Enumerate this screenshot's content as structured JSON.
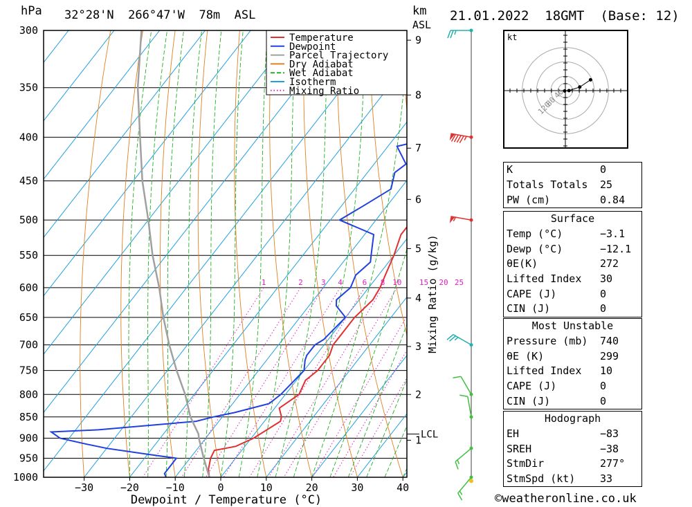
{
  "header": {
    "hpa_label": "hPa",
    "location": "32°28'N  266°47'W  78m  ASL",
    "km_label": "km",
    "asl_label": "ASL",
    "datetime": "21.01.2022  18GMT  (Base: 12)"
  },
  "chart_data": {
    "type": "skew-t",
    "xlabel": "Dewpoint / Temperature (°C)",
    "ylabel": "hPa",
    "mixing_ratio_label": "Mixing Ratio (g/kg)",
    "x_ticks": [
      -30,
      -20,
      -10,
      0,
      10,
      20,
      30,
      40
    ],
    "pressure_levels": [
      300,
      350,
      400,
      450,
      500,
      550,
      600,
      650,
      700,
      750,
      800,
      850,
      900,
      950,
      1000
    ],
    "height_ticks_km": [
      {
        "km": 1,
        "p": 905
      },
      {
        "km": 2,
        "p": 800
      },
      {
        "km": 3,
        "p": 703
      },
      {
        "km": 4,
        "p": 617
      },
      {
        "km": 5,
        "p": 540
      },
      {
        "km": 6,
        "p": 473
      },
      {
        "km": 7,
        "p": 412
      },
      {
        "km": 8,
        "p": 357
      },
      {
        "km": 9,
        "p": 308
      }
    ],
    "lcl": {
      "label": "LCL",
      "p": 890
    },
    "mixing_ratio_labels": [
      "1",
      "2",
      "3",
      "4",
      "6",
      "8",
      "10",
      "15",
      "20",
      "25"
    ],
    "mixing_ratio_values": [
      1,
      2,
      3,
      4,
      6,
      8,
      10,
      15,
      20,
      25
    ],
    "legend": [
      "Temperature",
      "Dewpoint",
      "Parcel Trajectory",
      "Dry Adiabat",
      "Wet Adiabat",
      "Isotherm",
      "Mixing Ratio"
    ],
    "colors": {
      "temperature": "#e03030",
      "dewpoint": "#2040e0",
      "parcel": "#a0a0a0",
      "dry_adiabat": "#e08020",
      "wet_adiabat": "#20b020",
      "isotherm": "#20a0e0",
      "mixing_ratio": "#e020c0",
      "wind_axis": "#404040"
    },
    "series": [
      {
        "name": "Temperature",
        "points": [
          [
            1000,
            -2.5
          ],
          [
            980,
            -4
          ],
          [
            950,
            -5.5
          ],
          [
            930,
            -6
          ],
          [
            920,
            -2
          ],
          [
            900,
            0.5
          ],
          [
            880,
            2
          ],
          [
            860,
            3.5
          ],
          [
            850,
            3
          ],
          [
            830,
            1
          ],
          [
            800,
            3
          ],
          [
            770,
            2
          ],
          [
            750,
            3
          ],
          [
            720,
            3
          ],
          [
            700,
            2
          ],
          [
            650,
            2
          ],
          [
            620,
            3
          ],
          [
            600,
            2.5
          ],
          [
            580,
            1.5
          ],
          [
            550,
            0
          ],
          [
            520,
            -2
          ],
          [
            500,
            -2
          ],
          [
            470,
            -4
          ],
          [
            450,
            -6
          ],
          [
            430,
            -8
          ],
          [
            400,
            -10
          ],
          [
            380,
            -11
          ],
          [
            350,
            -14
          ],
          [
            320,
            -18
          ],
          [
            300,
            -21
          ]
        ]
      },
      {
        "name": "Dewpoint",
        "points": [
          [
            1000,
            -12
          ],
          [
            990,
            -13
          ],
          [
            950,
            -13
          ],
          [
            940,
            -20
          ],
          [
            925,
            -30
          ],
          [
            915,
            -35
          ],
          [
            900,
            -42
          ],
          [
            885,
            -45
          ],
          [
            880,
            -35
          ],
          [
            870,
            -25
          ],
          [
            860,
            -15
          ],
          [
            850,
            -12
          ],
          [
            840,
            -8
          ],
          [
            820,
            -2
          ],
          [
            800,
            -1
          ],
          [
            750,
            0
          ],
          [
            730,
            -1.5
          ],
          [
            720,
            -2
          ],
          [
            700,
            -2
          ],
          [
            690,
            -1
          ],
          [
            670,
            -0.5
          ],
          [
            650,
            0
          ],
          [
            630,
            -4
          ],
          [
            620,
            -5
          ],
          [
            600,
            -4
          ],
          [
            580,
            -5
          ],
          [
            560,
            -4
          ],
          [
            550,
            -5
          ],
          [
            520,
            -8
          ],
          [
            500,
            -18
          ],
          [
            480,
            -15
          ],
          [
            460,
            -12
          ],
          [
            440,
            -14
          ],
          [
            430,
            -13
          ],
          [
            410,
            -18
          ],
          [
            400,
            -11
          ],
          [
            380,
            -4
          ],
          [
            370,
            -2
          ],
          [
            360,
            -3
          ],
          [
            340,
            -5
          ],
          [
            330,
            -7
          ],
          [
            320,
            -21
          ],
          [
            310,
            -28
          ],
          [
            300,
            -33
          ]
        ]
      },
      {
        "name": "Parcel Trajectory",
        "points": [
          [
            1000,
            -2.5
          ],
          [
            950,
            -7
          ],
          [
            900,
            -11.5
          ],
          [
            890,
            -12.3
          ],
          [
            850,
            -17
          ],
          [
            800,
            -22
          ],
          [
            750,
            -28
          ],
          [
            700,
            -34
          ],
          [
            650,
            -40
          ],
          [
            600,
            -46
          ],
          [
            550,
            -53
          ],
          [
            500,
            -60
          ],
          [
            450,
            -68
          ],
          [
            400,
            -76
          ],
          [
            350,
            -85
          ],
          [
            300,
            -94
          ]
        ]
      }
    ],
    "wind_barbs": [
      {
        "p": 300,
        "dir": 270,
        "kt": 25
      },
      {
        "p": 400,
        "dir": 280,
        "kt": 95
      },
      {
        "p": 500,
        "dir": 280,
        "kt": 55
      },
      {
        "p": 700,
        "dir": 300,
        "kt": 25
      },
      {
        "p": 800,
        "dir": 330,
        "kt": 10
      },
      {
        "p": 850,
        "dir": 350,
        "kt": 10
      },
      {
        "p": 925,
        "dir": 230,
        "kt": 15
      },
      {
        "p": 1000,
        "dir": 220,
        "kt": 15
      }
    ],
    "hodograph": {
      "unit_label": "kt",
      "rings": [
        20,
        40,
        80,
        120
      ],
      "ring_labels": [
        "40",
        "80",
        "120"
      ],
      "points": [
        [
          -2,
          -1
        ],
        [
          10,
          0
        ],
        [
          40,
          10
        ],
        [
          70,
          30
        ]
      ]
    }
  },
  "indices": {
    "general": [
      {
        "label": "K",
        "value": "0"
      },
      {
        "label": "Totals Totals",
        "value": "25"
      },
      {
        "label": "PW (cm)",
        "value": "0.84"
      }
    ],
    "surface_title": "Surface",
    "surface": [
      {
        "label": "Temp (°C)",
        "value": "−3.1"
      },
      {
        "label": "Dewp (°C)",
        "value": "−12.1"
      },
      {
        "label": "θE(K)",
        "value": "272"
      },
      {
        "label": "Lifted Index",
        "value": "30"
      },
      {
        "label": "CAPE (J)",
        "value": "0"
      },
      {
        "label": "CIN (J)",
        "value": "0"
      }
    ],
    "mu_title": "Most Unstable",
    "most_unstable": [
      {
        "label": "Pressure (mb)",
        "value": "740"
      },
      {
        "label": "θE (K)",
        "value": "299"
      },
      {
        "label": "Lifted Index",
        "value": "10"
      },
      {
        "label": "CAPE (J)",
        "value": "0"
      },
      {
        "label": "CIN (J)",
        "value": "0"
      }
    ],
    "hodo_title": "Hodograph",
    "hodograph": [
      {
        "label": "EH",
        "value": "−83"
      },
      {
        "label": "SREH",
        "value": "−38"
      },
      {
        "label": "StmDir",
        "value": "277°"
      },
      {
        "label": "StmSpd (kt)",
        "value": "33"
      }
    ]
  },
  "footer": {
    "copyright": "©weatheronline.co.uk"
  }
}
